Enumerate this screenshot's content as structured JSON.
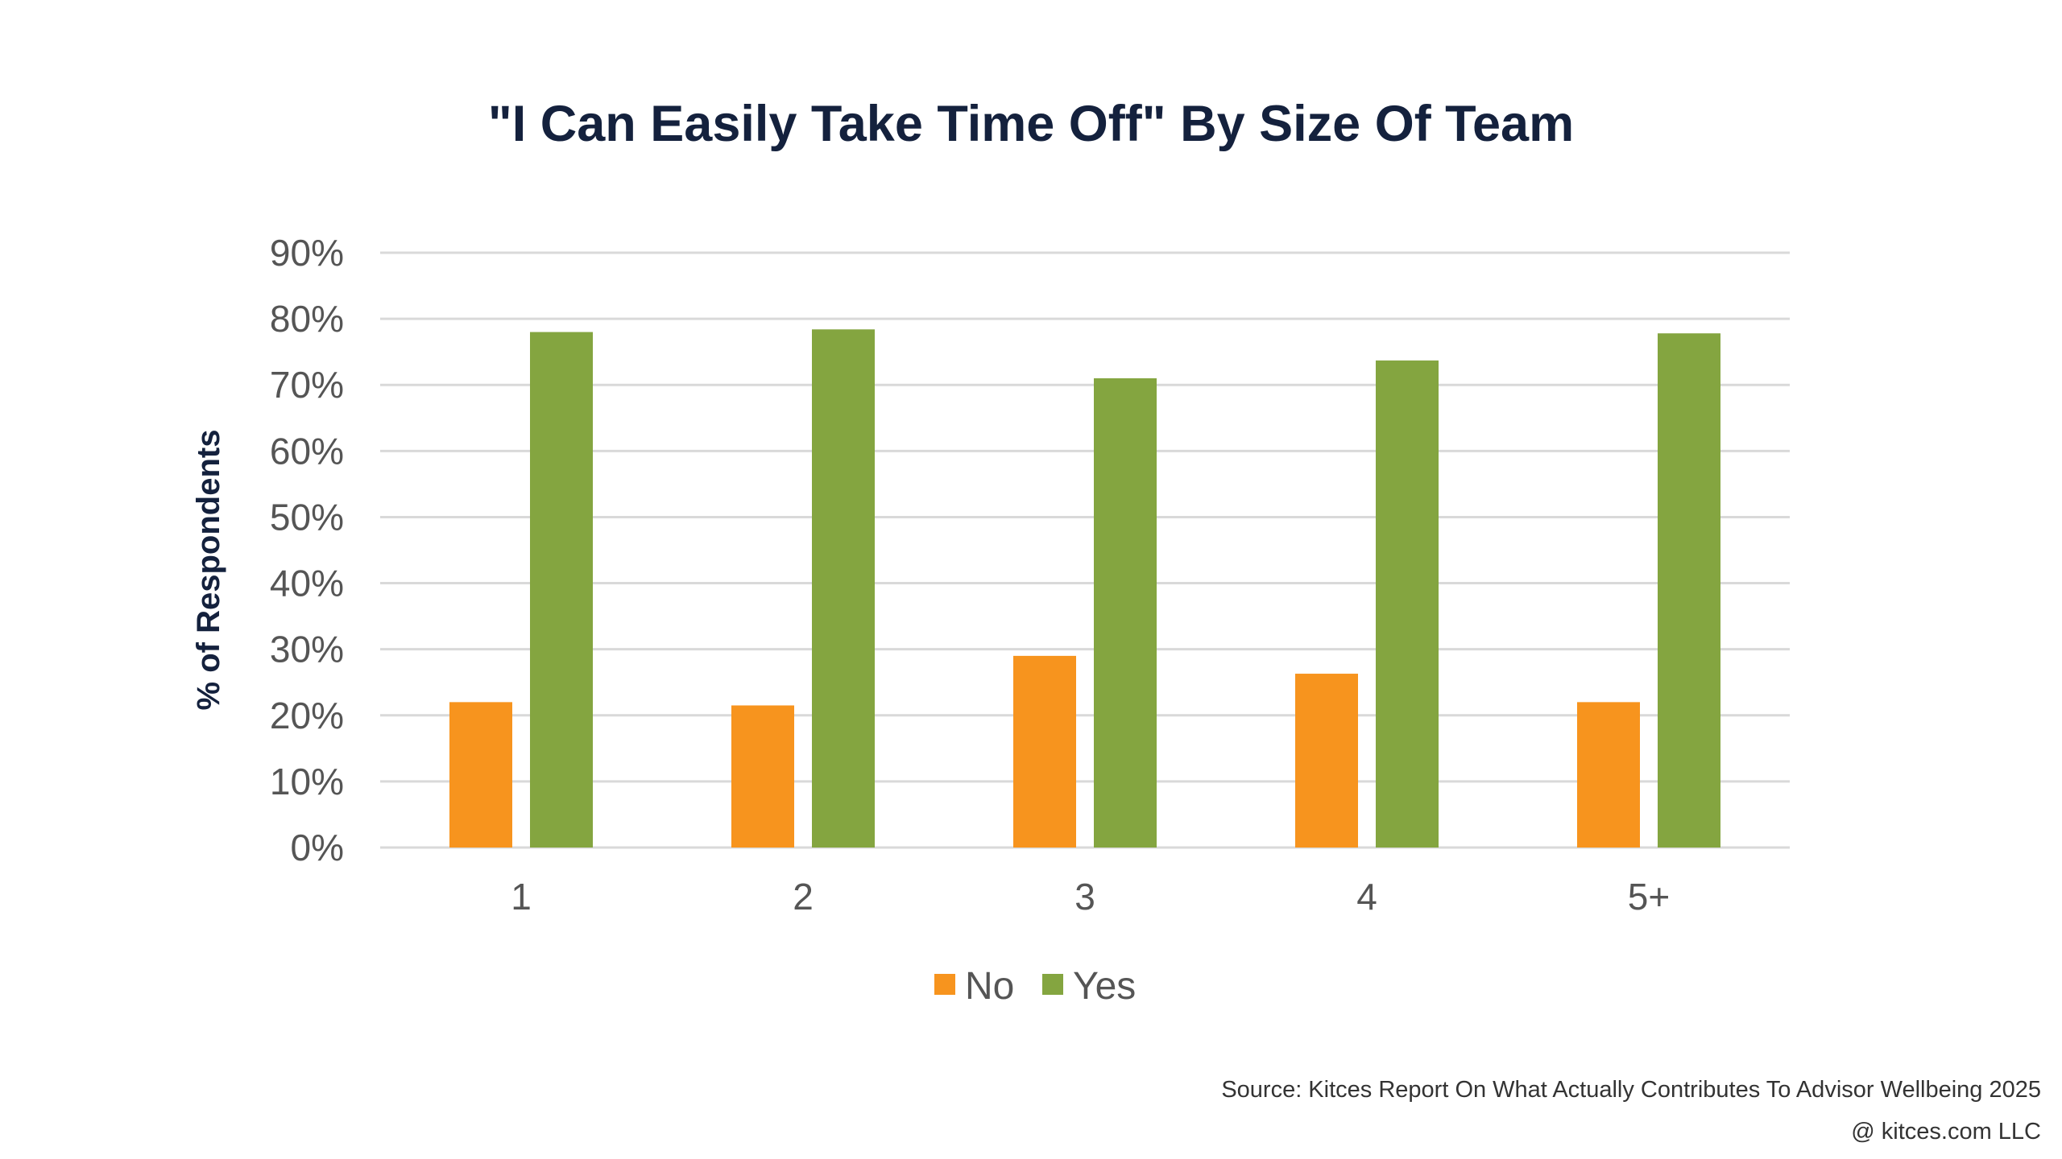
{
  "chart_data": {
    "type": "bar",
    "title": "\"I Can Easily Take Time Off\" By Size Of Team",
    "xlabel": "",
    "ylabel": "% of Respondents",
    "categories": [
      "1",
      "2",
      "3",
      "4",
      "5+"
    ],
    "series": [
      {
        "name": "No",
        "values": [
          22,
          21.5,
          29,
          26.3,
          22
        ],
        "color": "#f7941e"
      },
      {
        "name": "Yes",
        "values": [
          78,
          78.4,
          71,
          73.7,
          77.8
        ],
        "color": "#84a540"
      }
    ],
    "ylim": [
      0,
      90
    ],
    "yticks": [
      0,
      10,
      20,
      30,
      40,
      50,
      60,
      70,
      80,
      90
    ],
    "ytick_labels": [
      "0%",
      "10%",
      "20%",
      "30%",
      "40%",
      "50%",
      "60%",
      "70%",
      "80%",
      "90%"
    ],
    "grid": true,
    "legend_position": "bottom"
  },
  "footer": {
    "source": "Source: Kitces Report On What Actually Contributes To Advisor Wellbeing 2025",
    "copyright": "@ kitces.com LLC"
  }
}
